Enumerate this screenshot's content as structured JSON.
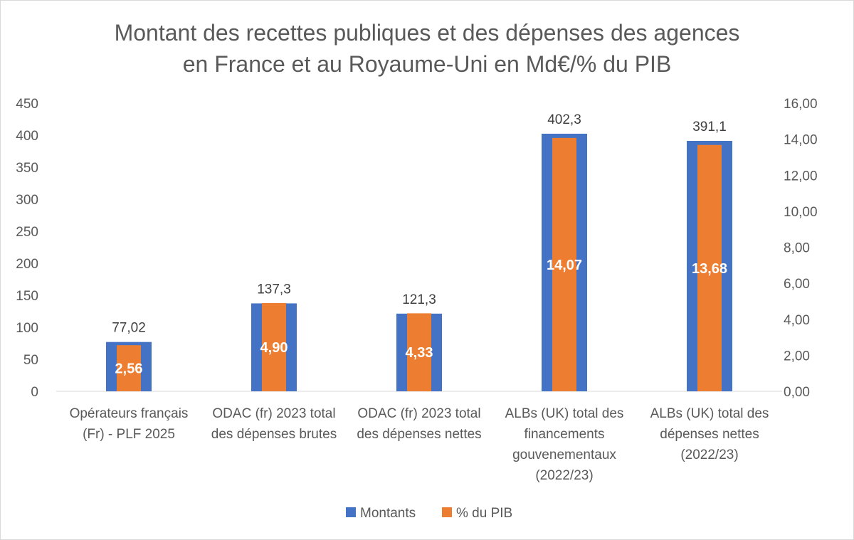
{
  "chart_data": {
    "type": "bar",
    "title_lines": [
      "Montant des recettes publiques et des dépenses des agences",
      "en France et au Royaume-Uni en Md€/% du PIB"
    ],
    "categories": [
      [
        "Opérateurs français",
        "(Fr) - PLF 2025"
      ],
      [
        "ODAC (fr) 2023 total",
        "des dépenses brutes"
      ],
      [
        "ODAC (fr) 2023 total",
        "des dépenses nettes"
      ],
      [
        "ALBs (UK) total des",
        "financements",
        "gouvenementaux",
        "(2022/23)"
      ],
      [
        "ALBs (UK) total des",
        "dépenses nettes",
        "(2022/23)"
      ]
    ],
    "series": [
      {
        "name": "Montants",
        "axis": "left",
        "color": "#4472C4",
        "values": [
          77.02,
          137.3,
          121.3,
          402.3,
          391.1
        ],
        "labels": [
          "77,02",
          "137,3",
          "121,3",
          "402,3",
          "391,1"
        ]
      },
      {
        "name": "% du PIB",
        "axis": "right",
        "color": "#ED7D31",
        "values": [
          2.56,
          4.9,
          4.33,
          14.07,
          13.68
        ],
        "labels": [
          "2,56",
          "4,90",
          "4,33",
          "14,07",
          "13,68"
        ]
      }
    ],
    "y_left": {
      "range": [
        0,
        450
      ],
      "ticks": [
        0,
        50,
        100,
        150,
        200,
        250,
        300,
        350,
        400,
        450
      ],
      "tick_labels": [
        "0",
        "50",
        "100",
        "150",
        "200",
        "250",
        "300",
        "350",
        "400",
        "450"
      ]
    },
    "y_right": {
      "range": [
        0,
        16
      ],
      "ticks": [
        0,
        2,
        4,
        6,
        8,
        10,
        12,
        14,
        16
      ],
      "tick_labels": [
        "0,00",
        "2,00",
        "4,00",
        "6,00",
        "8,00",
        "10,00",
        "12,00",
        "14,00",
        "16,00"
      ]
    },
    "grid": false,
    "legend_position": "bottom"
  }
}
